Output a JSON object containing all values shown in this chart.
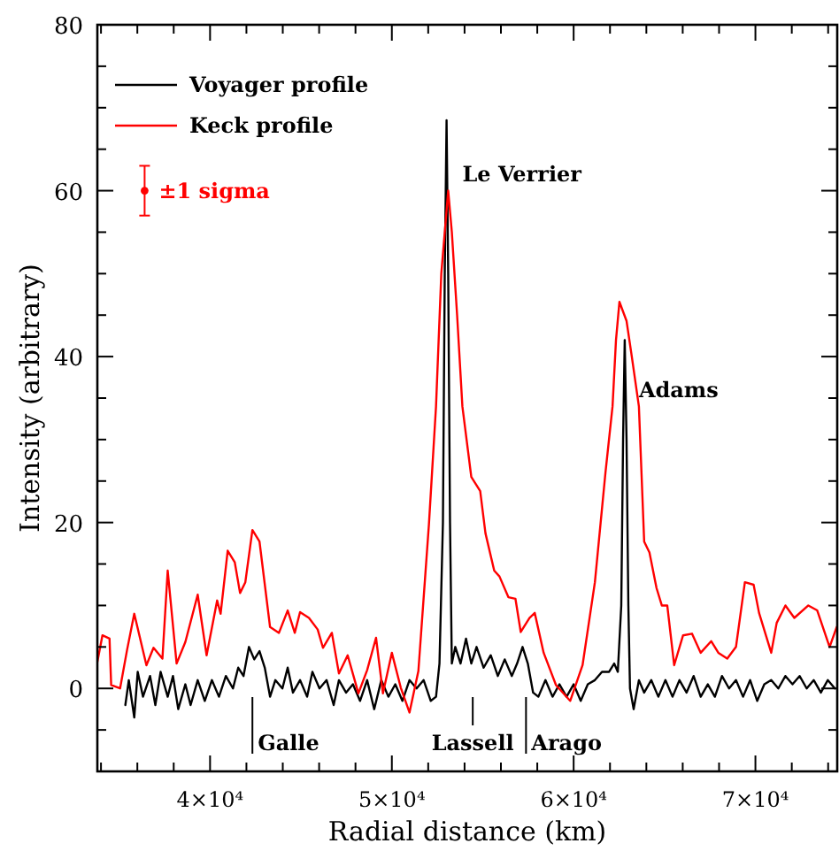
{
  "chart_data": {
    "type": "line",
    "xlabel": "Radial distance (km)",
    "ylabel": "Intensity (arbitrary)",
    "xlim": [
      33800,
      74500
    ],
    "ylim": [
      -10,
      80
    ],
    "xticks": [
      {
        "value": 34000,
        "label": null
      },
      {
        "value": 36000,
        "label": null
      },
      {
        "value": 38000,
        "label": null
      },
      {
        "value": 40000,
        "label": "4×10⁴"
      },
      {
        "value": 42000,
        "label": null
      },
      {
        "value": 44000,
        "label": null
      },
      {
        "value": 46000,
        "label": null
      },
      {
        "value": 48000,
        "label": null
      },
      {
        "value": 50000,
        "label": "5×10⁴"
      },
      {
        "value": 52000,
        "label": null
      },
      {
        "value": 54000,
        "label": null
      },
      {
        "value": 56000,
        "label": null
      },
      {
        "value": 58000,
        "label": null
      },
      {
        "value": 60000,
        "label": "6×10⁴"
      },
      {
        "value": 62000,
        "label": null
      },
      {
        "value": 64000,
        "label": null
      },
      {
        "value": 66000,
        "label": null
      },
      {
        "value": 68000,
        "label": null
      },
      {
        "value": 70000,
        "label": "7×10⁴"
      },
      {
        "value": 72000,
        "label": null
      },
      {
        "value": 74000,
        "label": null
      }
    ],
    "yticks": [
      {
        "value": -10,
        "label": null
      },
      {
        "value": -5,
        "label": null
      },
      0,
      {
        "value": 5,
        "label": null
      },
      {
        "value": 10,
        "label": null
      },
      {
        "value": 15,
        "label": null
      },
      20,
      {
        "value": 25,
        "label": null
      },
      {
        "value": 30,
        "label": null
      },
      {
        "value": 35,
        "label": null
      },
      40,
      {
        "value": 45,
        "label": null
      },
      {
        "value": 50,
        "label": null
      },
      {
        "value": 55,
        "label": null
      },
      60,
      {
        "value": 65,
        "label": null
      },
      {
        "value": 70,
        "label": null
      },
      {
        "value": 75,
        "label": null
      },
      80
    ],
    "legend": "top left",
    "grid": false,
    "series": [
      {
        "name": "Voyager profile",
        "color": "#000000",
        "x": [
          35340,
          35530,
          35830,
          36020,
          36310,
          36700,
          36990,
          37280,
          37670,
          37960,
          38250,
          38640,
          38930,
          39320,
          39710,
          40100,
          40490,
          40870,
          41260,
          41550,
          41840,
          42140,
          42430,
          42720,
          43010,
          43300,
          43590,
          43980,
          44270,
          44560,
          44950,
          45340,
          45630,
          46020,
          46410,
          46800,
          47090,
          47480,
          47860,
          48250,
          48640,
          49030,
          49420,
          49810,
          50190,
          50580,
          50970,
          51360,
          51750,
          52140,
          52430,
          52620,
          52810,
          52910,
          53010,
          53100,
          53200,
          53300,
          53490,
          53780,
          54080,
          54370,
          54660,
          55050,
          55440,
          55830,
          56210,
          56600,
          56890,
          57190,
          57480,
          57770,
          58060,
          58450,
          58840,
          59220,
          59610,
          60000,
          60390,
          60780,
          61170,
          61560,
          61950,
          62230,
          62430,
          62620,
          62720,
          62810,
          62910,
          63010,
          63100,
          63300,
          63590,
          63880,
          64270,
          64660,
          65050,
          65440,
          65820,
          66210,
          66600,
          66990,
          67380,
          67770,
          68160,
          68550,
          68930,
          69320,
          69710,
          70100,
          70490,
          70870,
          71260,
          71650,
          72040,
          72430,
          72820,
          73210,
          73600,
          73980,
          74370
        ],
        "values": [
          -2,
          1,
          -3.5,
          2,
          -1,
          1.5,
          -2,
          2,
          -1,
          1.5,
          -2.5,
          0.5,
          -2,
          1,
          -1.5,
          1,
          -1,
          1.5,
          0,
          2.5,
          1.5,
          5,
          3.5,
          4.5,
          2.5,
          -1,
          1,
          0,
          2.5,
          -0.5,
          1,
          -1,
          2,
          0,
          1,
          -2,
          1,
          -0.5,
          0.5,
          -1.5,
          1,
          -2.5,
          1,
          -1,
          0.5,
          -1.5,
          1,
          0,
          1,
          -1.5,
          -1,
          3,
          20,
          50,
          68.5,
          50,
          20,
          3,
          5,
          3,
          6,
          3,
          5,
          2.5,
          4,
          1.5,
          3.5,
          1.5,
          3,
          5,
          3,
          -0.5,
          -1,
          1,
          -1,
          0.5,
          -1,
          0.5,
          -1.5,
          0.5,
          1,
          2,
          2,
          3,
          2,
          10,
          30,
          42,
          30,
          10,
          0,
          -2.5,
          1,
          -0.5,
          1,
          -1,
          1,
          -1,
          1,
          -0.5,
          1.5,
          -1,
          0.5,
          -1,
          1.5,
          0,
          1,
          -1,
          1,
          -1.5,
          0.5,
          1,
          0,
          1.5,
          0.5,
          1.5,
          0,
          1,
          -0.5,
          1,
          0
        ]
      },
      {
        "name": "Keck profile",
        "color": "#ff0000",
        "x": [
          33800,
          34080,
          34470,
          34560,
          35050,
          35440,
          35830,
          36500,
          36890,
          37380,
          37670,
          38160,
          38640,
          39320,
          39810,
          40390,
          40580,
          40970,
          41360,
          41650,
          41940,
          42330,
          42720,
          43300,
          43790,
          44270,
          44660,
          44950,
          45440,
          45920,
          46210,
          46700,
          47090,
          47570,
          48160,
          48640,
          49130,
          49510,
          50000,
          50490,
          50970,
          51460,
          52040,
          52430,
          52720,
          53100,
          53300,
          53590,
          53880,
          54370,
          54860,
          55150,
          55630,
          55920,
          56410,
          56800,
          57090,
          57570,
          57860,
          58350,
          59030,
          59810,
          60490,
          61170,
          61750,
          62140,
          62330,
          62520,
          62910,
          63200,
          63590,
          63880,
          64170,
          64560,
          64850,
          65150,
          65530,
          66020,
          66510,
          66990,
          67570,
          67960,
          68450,
          68930,
          69420,
          69900,
          70200,
          70870,
          71170,
          71650,
          72140,
          72910,
          73400,
          74080,
          74470
        ],
        "values": [
          3.2,
          6.4,
          6,
          0.4,
          0,
          4.7,
          9,
          2.8,
          4.9,
          3.6,
          14.2,
          3,
          5.6,
          11.3,
          4,
          10.6,
          9,
          16.6,
          15.2,
          11.5,
          12.8,
          19.1,
          17.7,
          7.4,
          6.7,
          9.4,
          6.7,
          9.2,
          8.5,
          7.1,
          4.9,
          6.7,
          1.8,
          4,
          -0.6,
          2.2,
          6.1,
          -0.6,
          4.3,
          0.1,
          -2.9,
          2.1,
          19.8,
          34,
          50,
          60,
          55,
          45,
          34,
          25.5,
          23.8,
          18.7,
          14.2,
          13.5,
          11,
          10.8,
          6.8,
          8.5,
          9.1,
          4.3,
          0.4,
          -1.5,
          2.8,
          12.8,
          26,
          34,
          42,
          46.6,
          44.3,
          40,
          34,
          17.7,
          16.4,
          12.1,
          10,
          10,
          2.8,
          6.4,
          6.6,
          4.3,
          5.7,
          4.3,
          3.6,
          5,
          12.8,
          12.5,
          9.1,
          4.3,
          7.9,
          10,
          8.5,
          10,
          9.4,
          5,
          7.4
        ]
      },
      {
        "type": "scatter",
        "color": "#ff0000",
        "x": [
          36400
        ],
        "values": [
          60
        ],
        "errors": [
          3
        ],
        "marker": "circle"
      }
    ],
    "line_style": "solid",
    "ref_lines": [
      {
        "axis": "x",
        "value": 42330,
        "label": "Galle"
      },
      {
        "axis": "x",
        "value": 54450,
        "label": "Lassell"
      },
      {
        "axis": "x",
        "value": 57380,
        "label": "Arago"
      }
    ],
    "annotations": [
      {
        "text": "Le Verrier",
        "x": 53100,
        "y": 62
      },
      {
        "text": "Adams",
        "x": 62810,
        "y": 36
      },
      {
        "text": "±1 sigma",
        "x": 36400,
        "y": 60
      }
    ]
  }
}
